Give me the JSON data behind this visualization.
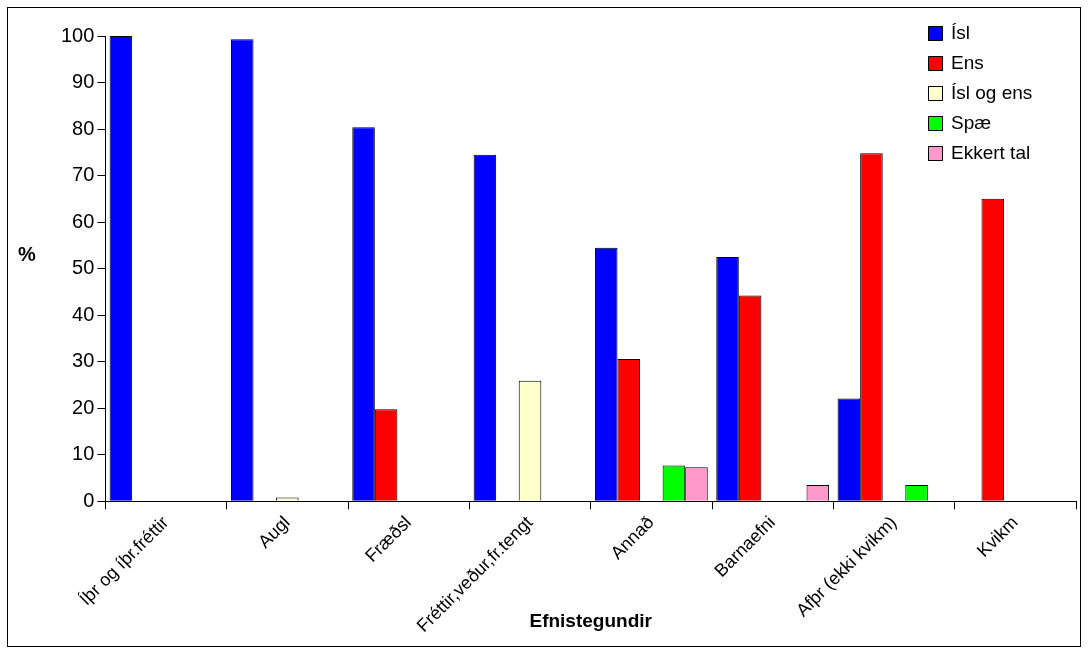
{
  "chart_data": {
    "type": "bar",
    "xlabel": "Efnistegundir",
    "ylabel": "%",
    "categories": [
      "Íþr og íþr.fréttir",
      "Augl",
      "Fræðsl",
      "Fréttir,veður,fr.tengt",
      "Annað",
      "Barnaefni",
      "Afþr (ekki kvikm)",
      "Kvikm"
    ],
    "series": [
      {
        "name": "Ísl",
        "color": "#0000ff",
        "values": [
          100,
          99.3,
          80.4,
          74.5,
          54.5,
          52.5,
          22.1,
          null
        ]
      },
      {
        "name": "Ens",
        "color": "#ff0000",
        "values": [
          null,
          null,
          19.8,
          null,
          30.6,
          44.2,
          74.8,
          65
        ]
      },
      {
        "name": "Ísl og ens",
        "color": "#ffffcc",
        "values": [
          null,
          0.8,
          null,
          25.9,
          null,
          null,
          null,
          null
        ]
      },
      {
        "name": "Spæ",
        "color": "#00ff00",
        "values": [
          null,
          null,
          null,
          null,
          7.7,
          null,
          3.5,
          null
        ]
      },
      {
        "name": "Ekkert tal",
        "color": "#ff99cc",
        "values": [
          null,
          null,
          null,
          null,
          7.3,
          3.5,
          null,
          null
        ]
      }
    ],
    "ylim": [
      0,
      100
    ],
    "yticks": [
      0,
      10,
      20,
      30,
      40,
      50,
      60,
      70,
      80,
      90,
      100
    ],
    "grid": false,
    "legend": "top right"
  }
}
